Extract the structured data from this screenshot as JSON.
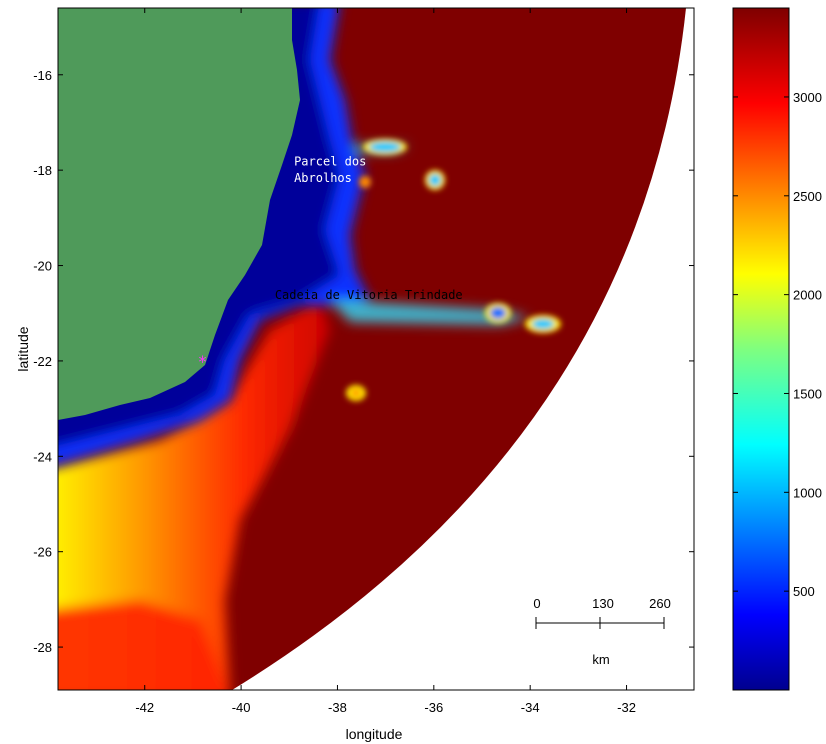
{
  "map": {
    "xlabel": "longitude",
    "ylabel": "latitude",
    "xlim": [
      -43.8,
      -30.6
    ],
    "ylim": [
      -28.9,
      -14.6
    ],
    "x_ticks": [
      -42,
      -40,
      -38,
      -36,
      -34,
      -32
    ],
    "y_ticks": [
      -16,
      -18,
      -20,
      -22,
      -24,
      -26,
      -28
    ],
    "x_tick_labels": [
      "-42",
      "-40",
      "-38",
      "-36",
      "-34",
      "-32"
    ],
    "y_tick_labels": [
      "-16",
      "-18",
      "-20",
      "-22",
      "-24",
      "-26",
      "-28"
    ],
    "land_color": "#4f9a5a",
    "deep_color": "#7f0000",
    "annotations": [
      {
        "text": "Parcel dos",
        "lon": -38.9,
        "lat": -17.9,
        "color": "#ffffff"
      },
      {
        "text": "Abrolhos",
        "lon": -38.9,
        "lat": -18.25,
        "color": "#ffffff"
      },
      {
        "text": "Cadeia de Vitoria Trindade",
        "lon": -39.3,
        "lat": -20.7,
        "color": "#000000"
      }
    ],
    "marker": {
      "symbol": "*",
      "lon": -40.8,
      "lat": -22.0,
      "color": "#ff33ff"
    }
  },
  "scalebar": {
    "labels": [
      "0",
      "130",
      "260"
    ],
    "unit": "km"
  },
  "colorbar": {
    "min": 0,
    "max": 3450,
    "ticks": [
      500,
      1000,
      1500,
      2000,
      2500,
      3000
    ],
    "tick_labels": [
      "500",
      "1000",
      "1500",
      "2000",
      "2500",
      "3000"
    ],
    "colormap": "jet"
  }
}
